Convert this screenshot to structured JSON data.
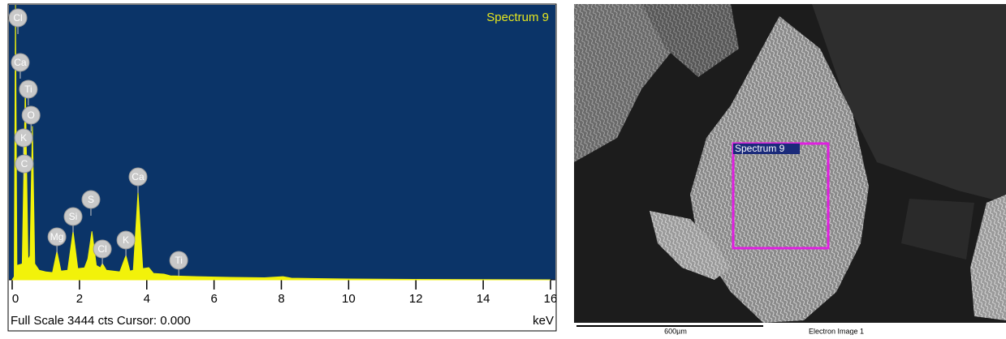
{
  "chart_data": {
    "type": "area",
    "title": "Spectrum 9",
    "footer": "Full Scale 3444 cts Cursor: 0.000",
    "xlabel": "keV",
    "color": "#f2f20a",
    "xlim": [
      0,
      16
    ],
    "xticks": [
      0,
      2,
      4,
      6,
      8,
      10,
      12,
      14,
      16
    ],
    "ylim": [
      0,
      3444
    ],
    "x": [
      0,
      0.06,
      0.1,
      0.14,
      0.3,
      0.39,
      0.47,
      0.53,
      0.6,
      0.67,
      0.8,
      1.0,
      1.2,
      1.33,
      1.45,
      1.65,
      1.81,
      1.95,
      2.15,
      2.25,
      2.37,
      2.5,
      2.62,
      2.68,
      2.8,
      3.2,
      3.38,
      3.5,
      3.6,
      3.74,
      3.88,
      4.06,
      4.2,
      4.51,
      4.7,
      5.5,
      6.5,
      7.5,
      8.05,
      8.3,
      10,
      12,
      16
    ],
    "series": [
      {
        "name": "Spectrum 9",
        "color": "#f2f20a",
        "values": [
          0,
          40,
          3444,
          180,
          200,
          2430,
          250,
          300,
          1925,
          200,
          120,
          100,
          90,
          355,
          110,
          120,
          608,
          140,
          150,
          260,
          608,
          180,
          150,
          203,
          120,
          100,
          304,
          110,
          120,
          1094,
          140,
          152,
          80,
          71,
          50,
          40,
          30,
          25,
          40,
          20,
          10,
          5,
          0
        ]
      }
    ],
    "peak_labels": [
      {
        "label": "Cl",
        "x": 0.17
      },
      {
        "label": "Ca",
        "x": 0.24
      },
      {
        "label": "Ti",
        "x": 0.48
      },
      {
        "label": "O",
        "x": 0.56
      },
      {
        "label": "K",
        "x": 0.34
      },
      {
        "label": "C",
        "x": 0.36
      },
      {
        "label": "Mg",
        "x": 1.33
      },
      {
        "label": "Si",
        "x": 1.81
      },
      {
        "label": "S",
        "x": 2.34
      },
      {
        "label": "Cl",
        "x": 2.68
      },
      {
        "label": "K",
        "x": 3.38
      },
      {
        "label": "Ca",
        "x": 3.74
      },
      {
        "label": "Ti",
        "x": 4.95
      }
    ]
  },
  "image_panel": {
    "region_label": "Spectrum 9",
    "scale_bar": "600µm",
    "caption": "Electron Image 1"
  }
}
